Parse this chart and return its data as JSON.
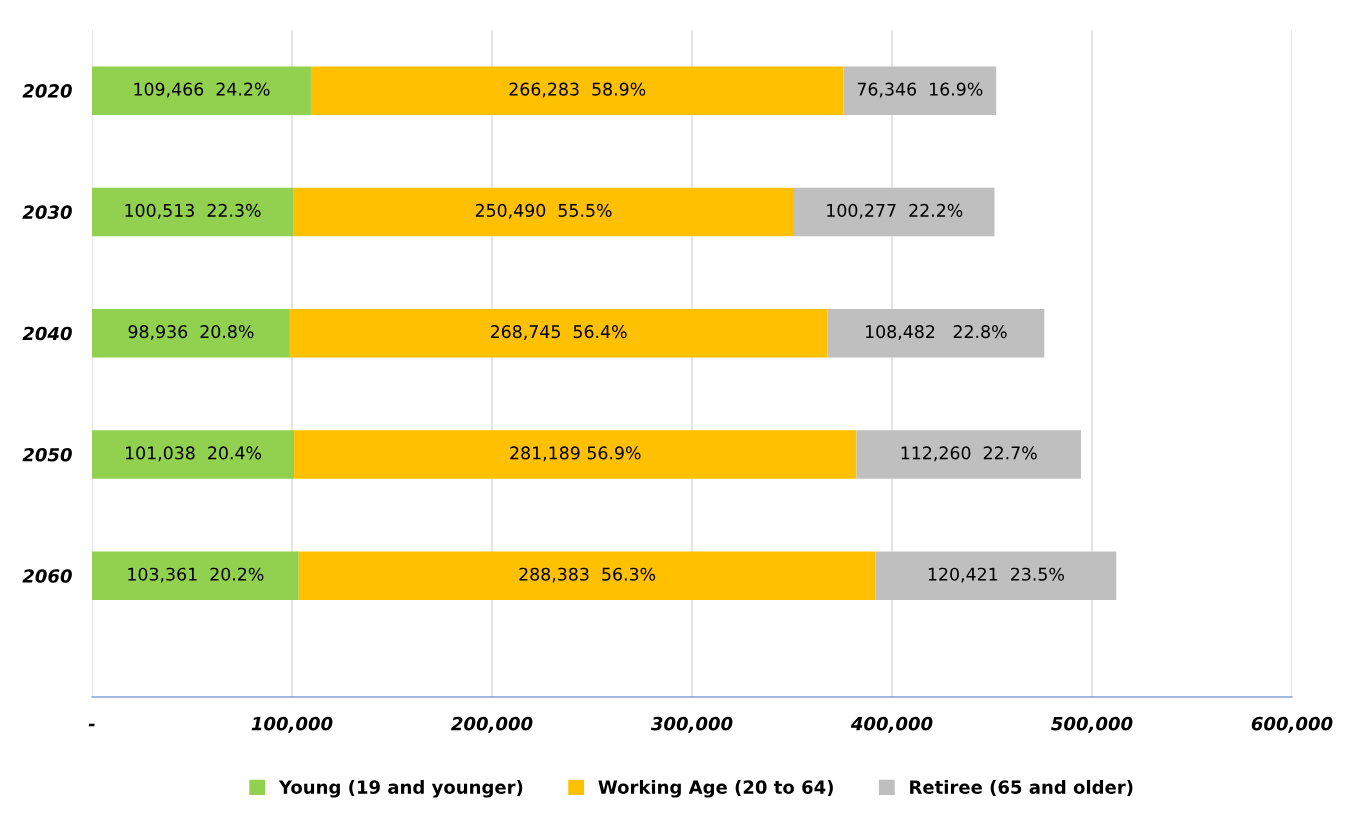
{
  "chart_data": {
    "type": "bar",
    "orientation": "horizontal",
    "stacked": true,
    "categories": [
      "2020",
      "2030",
      "2040",
      "2050",
      "2060"
    ],
    "series": [
      {
        "name": "Young (19 and younger)",
        "color": "#92d050",
        "values": [
          109466,
          100513,
          98936,
          101038,
          103361
        ],
        "value_labels": [
          "109,466  24.2%",
          "100,513  22.3%",
          "98,936  20.8%",
          "101,038  20.4%",
          "103,361  20.2%"
        ]
      },
      {
        "name": "Working Age (20 to 64)",
        "color": "#ffc000",
        "values": [
          266283,
          250490,
          268745,
          281189,
          288383
        ],
        "value_labels": [
          "266,283  58.9%",
          "250,490  55.5%",
          "268,745  56.4%",
          "281,189 56.9%",
          "288,383  56.3%"
        ]
      },
      {
        "name": "Retiree (65 and older)",
        "color": "#bfbfbf",
        "values": [
          76346,
          100277,
          108482,
          112260,
          120421
        ],
        "value_labels": [
          "76,346  16.9%",
          "100,277  22.2%",
          "108,482   22.8%",
          "112,260  22.7%",
          "120,421  23.5%"
        ]
      }
    ],
    "xlim": [
      0,
      600000
    ],
    "xticks": [
      {
        "value": 0,
        "label": "-"
      },
      {
        "value": 100000,
        "label": "100,000"
      },
      {
        "value": 200000,
        "label": "200,000"
      },
      {
        "value": 300000,
        "label": "300,000"
      },
      {
        "value": 400000,
        "label": "400,000"
      },
      {
        "value": 500000,
        "label": "500,000"
      },
      {
        "value": 600000,
        "label": "600,000"
      }
    ],
    "grid": "x",
    "legend": "bottom"
  }
}
